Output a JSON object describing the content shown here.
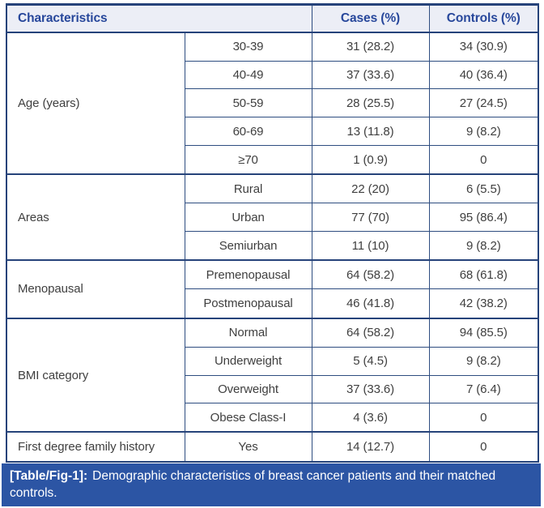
{
  "table": {
    "headers": {
      "characteristics": "Characteristics",
      "cases": "Cases (%)",
      "controls": "Controls (%)"
    },
    "groups": [
      {
        "label": "Age (years)",
        "rows": [
          [
            "30-39",
            "31 (28.2)",
            "34 (30.9)"
          ],
          [
            "40-49",
            "37 (33.6)",
            "40 (36.4)"
          ],
          [
            "50-59",
            "28 (25.5)",
            "27 (24.5)"
          ],
          [
            "60-69",
            "13 (11.8)",
            "9 (8.2)"
          ],
          [
            "≥70",
            "1 (0.9)",
            "0"
          ]
        ]
      },
      {
        "label": "Areas",
        "rows": [
          [
            "Rural",
            "22 (20)",
            "6 (5.5)"
          ],
          [
            "Urban",
            "77 (70)",
            "95 (86.4)"
          ],
          [
            "Semiurban",
            "11 (10)",
            "9 (8.2)"
          ]
        ]
      },
      {
        "label": "Menopausal",
        "rows": [
          [
            "Premenopausal",
            "64 (58.2)",
            "68 (61.8)"
          ],
          [
            "Postmenopausal",
            "46 (41.8)",
            "42 (38.2)"
          ]
        ]
      },
      {
        "label": "BMI category",
        "rows": [
          [
            "Normal",
            "64 (58.2)",
            "94 (85.5)"
          ],
          [
            "Underweight",
            "5 (4.5)",
            "9 (8.2)"
          ],
          [
            "Overweight",
            "37 (33.6)",
            "7 (6.4)"
          ],
          [
            "Obese Class-I",
            "4 (3.6)",
            "0"
          ]
        ]
      },
      {
        "label": "First degree family history",
        "rows": [
          [
            "Yes",
            "14 (12.7)",
            "0"
          ]
        ]
      }
    ]
  },
  "caption": {
    "label": "[Table/Fig-1]:",
    "text": "Demographic characteristics of breast cancer patients and their matched controls."
  },
  "colors": {
    "header_bg": "#eceef6",
    "header_text": "#27479b",
    "border": "#2e4d80",
    "outer_border": "#26437a",
    "caption_bg": "#2c55a4",
    "caption_text": "#ffffff",
    "body_text": "#3f3f3f"
  }
}
